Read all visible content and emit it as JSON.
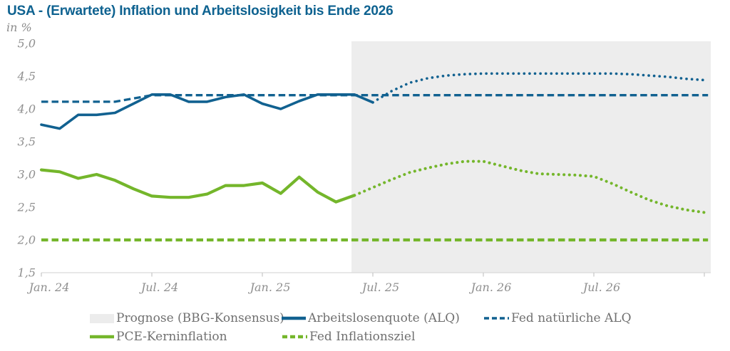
{
  "header": {
    "title": "USA - (Erwartete) Inflation und Arbeitslosigkeit bis Ende 2026",
    "unit_label": "in %"
  },
  "colors": {
    "blue": "#116190",
    "green": "#74b62b",
    "title_blue": "#0e6290",
    "forecast_bg": "#ededed",
    "axis_line": "#d9d9d9",
    "tick": "#c6c6c6",
    "axis_text": "#8f8f8f"
  },
  "legend": {
    "items": [
      {
        "label": "Prognose (BBG-Konsensus)",
        "swatch": "area",
        "color": "#ececec"
      },
      {
        "label": "Arbeitslosenquote (ALQ)",
        "swatch": "line-solid",
        "color": "#116190"
      },
      {
        "label": "Fed natürliche ALQ",
        "swatch": "line-dashed",
        "color": "#116190"
      },
      {
        "label": "PCE-Kerninflation",
        "swatch": "line-solid",
        "color": "#74b62b"
      },
      {
        "label": "Fed Inflationsziel",
        "swatch": "line-dashed",
        "color": "#74b62b"
      }
    ]
  },
  "chart_data": {
    "type": "line",
    "title": "USA - (Erwartete) Inflation und Arbeitslosigkeit bis Ende 2026",
    "ylabel": "in %",
    "ylim": [
      1.5,
      5.0
    ],
    "grid": "off",
    "x_domain_months": [
      0,
      36
    ],
    "x_domain_note": "month index 0 = Jan 2024, 36 = Jan 2027 (Ende 2026)",
    "y_ticks": [
      {
        "value": 5.0,
        "label": "5,0"
      },
      {
        "value": 4.5,
        "label": "4,5"
      },
      {
        "value": 4.0,
        "label": "4,0"
      },
      {
        "value": 3.5,
        "label": "3,5"
      },
      {
        "value": 3.0,
        "label": "3,0"
      },
      {
        "value": 2.5,
        "label": "2,5"
      },
      {
        "value": 2.0,
        "label": "2,0"
      },
      {
        "value": 1.5,
        "label": "1,5"
      }
    ],
    "x_ticks": [
      {
        "month": 0,
        "label": "Jan. 24"
      },
      {
        "month": 6,
        "label": "Jul. 24"
      },
      {
        "month": 12,
        "label": "Jan. 25"
      },
      {
        "month": 18,
        "label": "Jul. 25"
      },
      {
        "month": 24,
        "label": "Jan. 26"
      },
      {
        "month": 30,
        "label": "Jul. 26"
      },
      {
        "month": 36,
        "label": ""
      }
    ],
    "forecast_region": {
      "label": "Prognose (BBG-Konsensus)",
      "start_month": 16.84,
      "end_month": 36.35,
      "color": "#ededed"
    },
    "series": [
      {
        "name": "Arbeitslosenquote (ALQ)",
        "style": "solid",
        "color": "#116190",
        "width": 3.6,
        "months": [
          0,
          1,
          2,
          3,
          4,
          5,
          6,
          7,
          8,
          9,
          10,
          11,
          12,
          13,
          14,
          15,
          16,
          17,
          18
        ],
        "values": [
          3.76,
          3.7,
          3.91,
          3.91,
          3.94,
          4.08,
          4.22,
          4.22,
          4.11,
          4.11,
          4.18,
          4.22,
          4.08,
          4.0,
          4.12,
          4.22,
          4.22,
          4.22,
          4.1
        ]
      },
      {
        "name": "Arbeitslosenquote (ALQ) Prognose",
        "style": "dotted",
        "color": "#116190",
        "width": 3.6,
        "months": [
          18,
          19,
          20,
          21,
          22,
          23,
          24,
          25,
          26,
          27,
          28,
          29,
          30,
          31,
          32,
          33,
          34,
          35,
          36
        ],
        "values": [
          4.1,
          4.27,
          4.4,
          4.47,
          4.51,
          4.53,
          4.54,
          4.54,
          4.54,
          4.54,
          4.54,
          4.54,
          4.54,
          4.54,
          4.53,
          4.51,
          4.49,
          4.46,
          4.44
        ]
      },
      {
        "name": "Fed natürliche ALQ",
        "style": "dashed",
        "color": "#116190",
        "width": 3.3,
        "months": [
          0,
          4,
          6,
          36.2
        ],
        "values": [
          4.11,
          4.11,
          4.21,
          4.21
        ]
      },
      {
        "name": "PCE-Kerninflation",
        "style": "solid",
        "color": "#74b62b",
        "width": 4.2,
        "months": [
          0,
          1,
          2,
          3,
          4,
          5,
          6,
          7,
          8,
          9,
          10,
          11,
          12,
          13,
          14,
          15,
          16,
          17
        ],
        "values": [
          3.07,
          3.04,
          2.94,
          3.0,
          2.91,
          2.78,
          2.67,
          2.65,
          2.65,
          2.7,
          2.83,
          2.83,
          2.87,
          2.71,
          2.96,
          2.73,
          2.58,
          2.68
        ]
      },
      {
        "name": "PCE-Kerninflation Prognose",
        "style": "dotted",
        "color": "#74b62b",
        "width": 4.0,
        "months": [
          17,
          18,
          19,
          20,
          21,
          22,
          23,
          24,
          25,
          26,
          27,
          28,
          29,
          30,
          31,
          32,
          33,
          34,
          35,
          36
        ],
        "values": [
          2.68,
          2.8,
          2.92,
          3.03,
          3.1,
          3.16,
          3.2,
          3.2,
          3.13,
          3.06,
          3.01,
          3.0,
          2.99,
          2.97,
          2.86,
          2.73,
          2.61,
          2.52,
          2.46,
          2.42
        ]
      },
      {
        "name": "Fed Inflationsziel",
        "style": "dashed",
        "color": "#74b62b",
        "width": 4.2,
        "months": [
          0,
          36.2
        ],
        "values": [
          2.0,
          2.0
        ]
      }
    ]
  }
}
